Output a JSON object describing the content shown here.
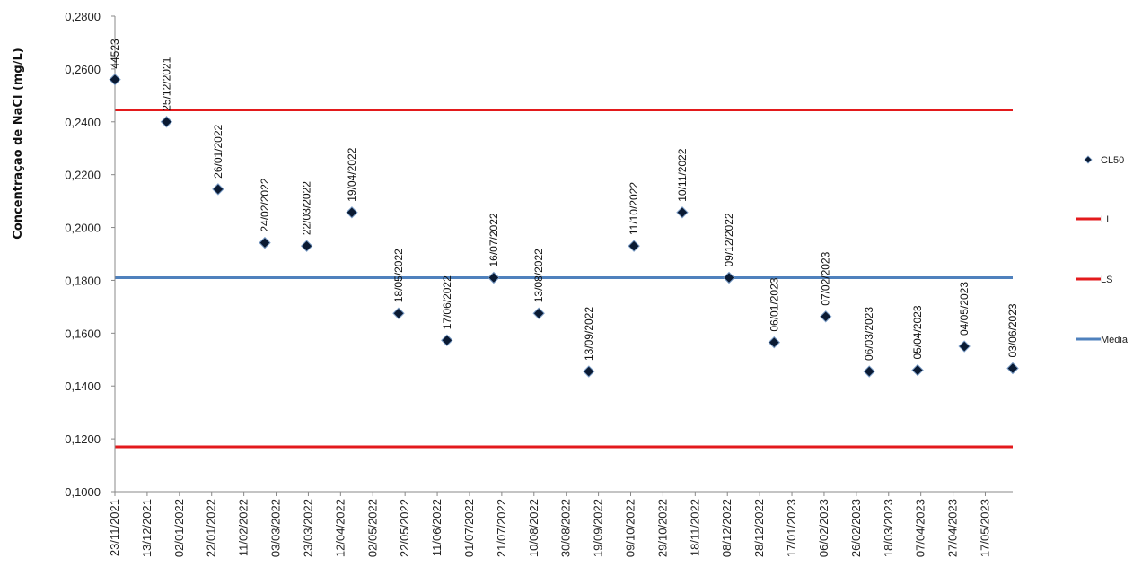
{
  "chart_data": {
    "type": "scatter",
    "title": "",
    "ylabel": "Concentração de NaCl (mg/L)",
    "xlabel": "",
    "ylim": [
      0.1,
      0.28
    ],
    "y_ticks": [
      "0,1000",
      "0,1200",
      "0,1400",
      "0,1600",
      "0,1800",
      "0,2000",
      "0,2200",
      "0,2400",
      "0,2600",
      "0,2800"
    ],
    "x_axis_type": "date",
    "xlim": [
      "2021-11-23",
      "2023-06-03"
    ],
    "x_ticks": [
      {
        "date": "2021-11-23",
        "label": "23/11/2021"
      },
      {
        "date": "2021-12-13",
        "label": "13/12/2021"
      },
      {
        "date": "2022-01-02",
        "label": "02/01/2022"
      },
      {
        "date": "2022-01-22",
        "label": "22/01/2022"
      },
      {
        "date": "2022-02-11",
        "label": "11/02/2022"
      },
      {
        "date": "2022-03-03",
        "label": "03/03/2022"
      },
      {
        "date": "2022-03-23",
        "label": "23/03/2022"
      },
      {
        "date": "2022-04-12",
        "label": "12/04/2022"
      },
      {
        "date": "2022-05-02",
        "label": "02/05/2022"
      },
      {
        "date": "2022-05-22",
        "label": "22/05/2022"
      },
      {
        "date": "2022-06-11",
        "label": "11/06/2022"
      },
      {
        "date": "2022-07-01",
        "label": "01/07/2022"
      },
      {
        "date": "2022-07-21",
        "label": "21/07/2022"
      },
      {
        "date": "2022-08-10",
        "label": "10/08/2022"
      },
      {
        "date": "2022-08-30",
        "label": "30/08/2022"
      },
      {
        "date": "2022-09-19",
        "label": "19/09/2022"
      },
      {
        "date": "2022-10-09",
        "label": "09/10/2022"
      },
      {
        "date": "2022-10-29",
        "label": "29/10/2022"
      },
      {
        "date": "2022-11-18",
        "label": "18/11/2022"
      },
      {
        "date": "2022-12-08",
        "label": "08/12/2022"
      },
      {
        "date": "2022-12-28",
        "label": "28/12/2022"
      },
      {
        "date": "2023-01-17",
        "label": "17/01/2023"
      },
      {
        "date": "2023-02-06",
        "label": "06/02/2023"
      },
      {
        "date": "2023-02-26",
        "label": "26/02/2023"
      },
      {
        "date": "2023-03-18",
        "label": "18/03/2023"
      },
      {
        "date": "2023-04-07",
        "label": "07/04/2023"
      },
      {
        "date": "2023-04-27",
        "label": "27/04/2023"
      },
      {
        "date": "2023-05-17",
        "label": "17/05/2023"
      }
    ],
    "series": [
      {
        "name": "CL50",
        "color": "#0a1a33",
        "marker": "diamond",
        "points": [
          {
            "x": "2021-11-23",
            "y": 0.256,
            "label": "44523"
          },
          {
            "x": "2021-12-25",
            "y": 0.24,
            "label": "25/12/2021"
          },
          {
            "x": "2022-01-26",
            "y": 0.2145,
            "label": "26/01/2022"
          },
          {
            "x": "2022-02-24",
            "y": 0.1942,
            "label": "24/02/2022"
          },
          {
            "x": "2022-03-22",
            "y": 0.193,
            "label": "22/03/2022"
          },
          {
            "x": "2022-04-19",
            "y": 0.2057,
            "label": "19/04/2022"
          },
          {
            "x": "2022-05-18",
            "y": 0.1675,
            "label": "18/05/2022"
          },
          {
            "x": "2022-06-17",
            "y": 0.1573,
            "label": "17/06/2022"
          },
          {
            "x": "2022-07-16",
            "y": 0.181,
            "label": "16/07/2022"
          },
          {
            "x": "2022-08-13",
            "y": 0.1675,
            "label": "13/08/2022"
          },
          {
            "x": "2022-09-13",
            "y": 0.1455,
            "label": "13/09/2022"
          },
          {
            "x": "2022-10-11",
            "y": 0.193,
            "label": "11/10/2022"
          },
          {
            "x": "2022-11-10",
            "y": 0.2057,
            "label": "10/11/2022"
          },
          {
            "x": "2022-12-09",
            "y": 0.181,
            "label": "09/12/2022"
          },
          {
            "x": "2023-01-06",
            "y": 0.1565,
            "label": "06/01/2023"
          },
          {
            "x": "2023-02-07",
            "y": 0.1663,
            "label": "07/02/2023"
          },
          {
            "x": "2023-03-06",
            "y": 0.1455,
            "label": "06/03/2023"
          },
          {
            "x": "2023-04-05",
            "y": 0.146,
            "label": "05/04/2023"
          },
          {
            "x": "2023-05-04",
            "y": 0.155,
            "label": "04/05/2023"
          },
          {
            "x": "2023-06-03",
            "y": 0.1467,
            "label": "03/06/2023"
          }
        ]
      }
    ],
    "reference_lines": [
      {
        "name": "LI",
        "y": 0.2445,
        "color": "#e31a1c"
      },
      {
        "name": "LS",
        "y": 0.117,
        "color": "#e31a1c"
      },
      {
        "name": "Média",
        "y": 0.181,
        "color": "#4f81bd"
      }
    ],
    "legend": {
      "position": "right",
      "entries": [
        "CL50",
        "LI",
        "LS",
        "Média"
      ]
    },
    "grid": false
  }
}
